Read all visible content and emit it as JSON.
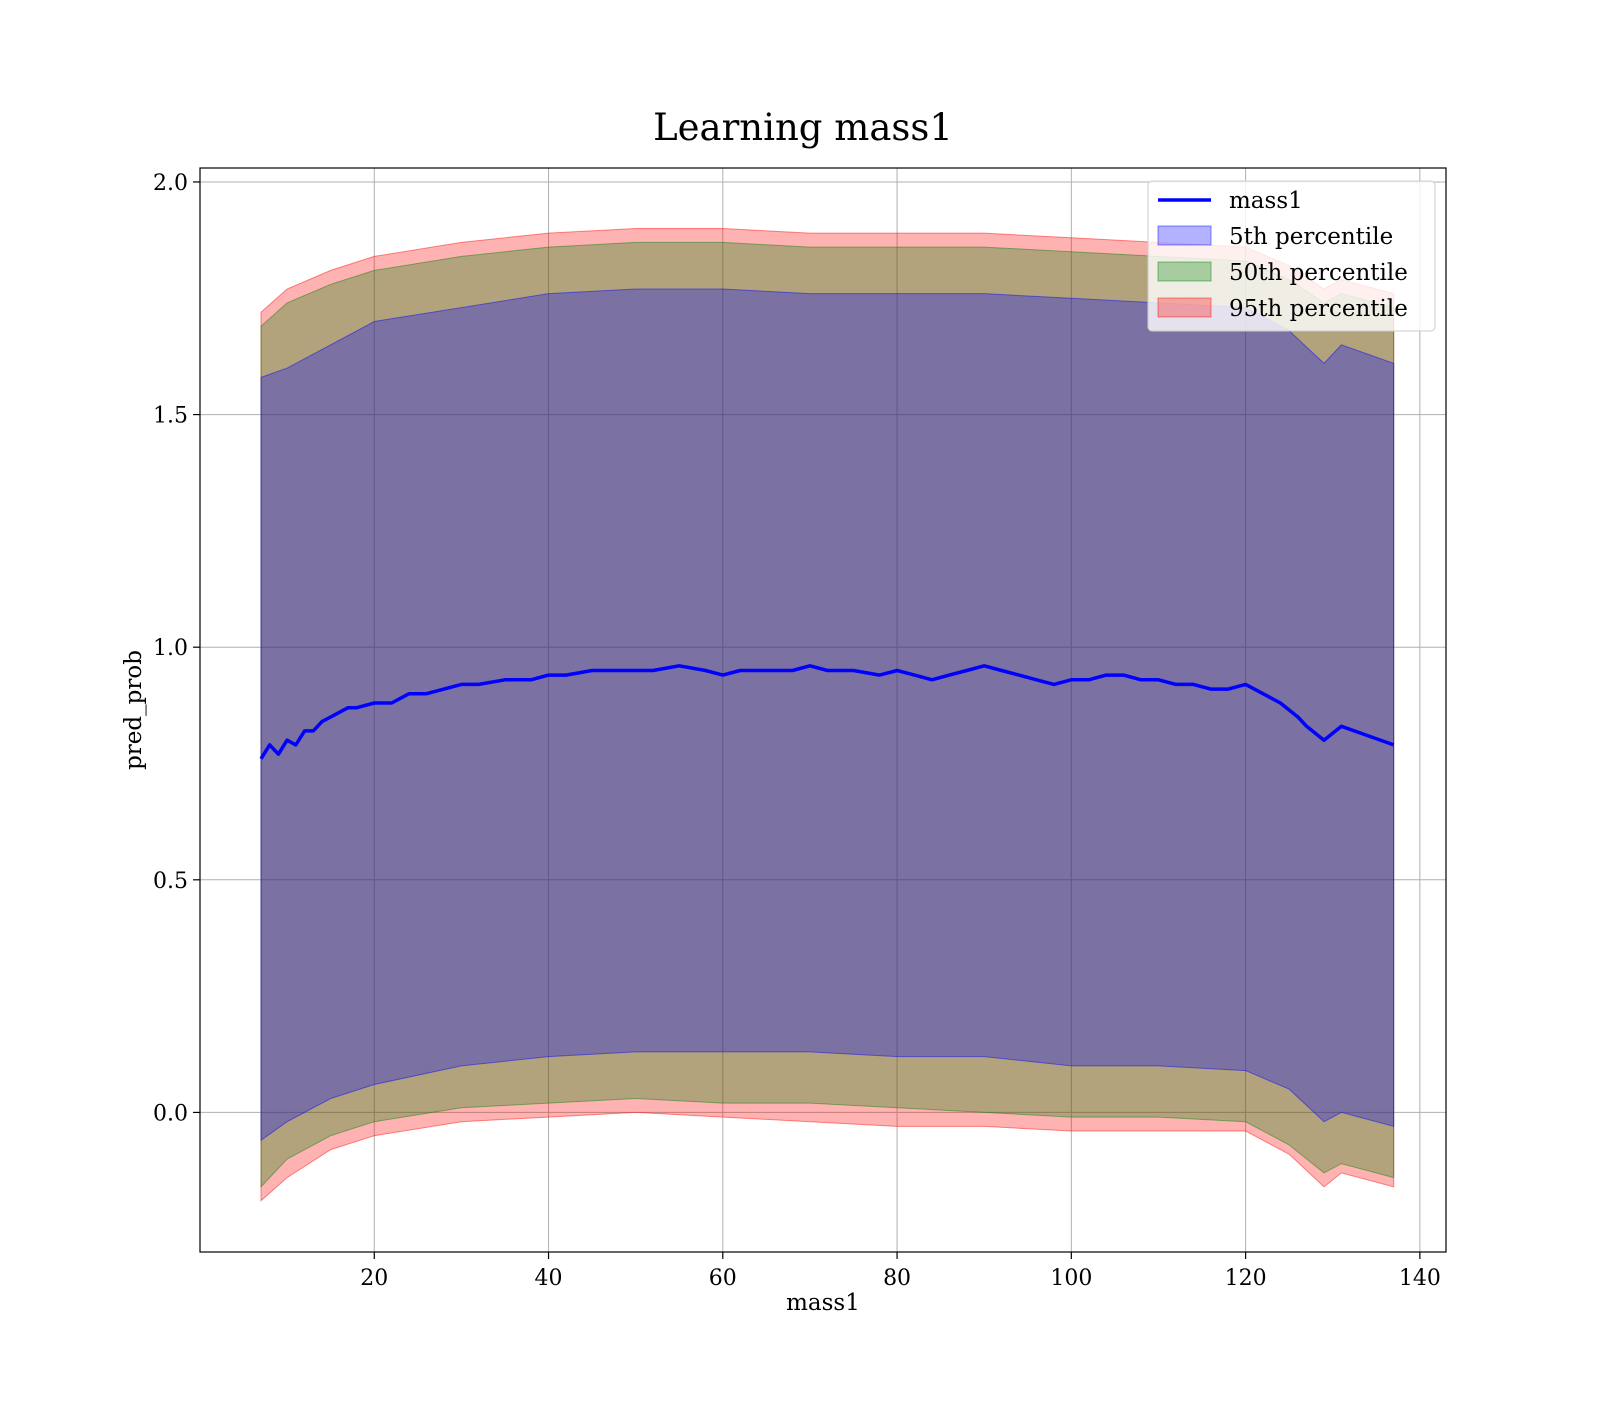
{
  "chart_data": {
    "type": "area",
    "title": "Learning mass1",
    "xlabel": "mass1",
    "ylabel": "pred_prob",
    "xlim": [
      0,
      143
    ],
    "ylim": [
      -0.3,
      2.03
    ],
    "x_ticks": [
      20,
      40,
      60,
      80,
      100,
      120,
      140
    ],
    "y_ticks": [
      0.0,
      0.5,
      1.0,
      1.5,
      2.0
    ],
    "x_tick_labels": [
      "20",
      "40",
      "60",
      "80",
      "100",
      "120",
      "140"
    ],
    "y_tick_labels": [
      "0.0",
      "0.5",
      "1.0",
      "1.5",
      "2.0"
    ],
    "grid": true,
    "legend_position": "top-right",
    "line": {
      "name": "mass1",
      "color": "#0000ff",
      "x": [
        7,
        8,
        9,
        10,
        11,
        12,
        13,
        14,
        15,
        16,
        17,
        18,
        20,
        22,
        24,
        26,
        28,
        30,
        32,
        35,
        38,
        40,
        42,
        45,
        48,
        50,
        52,
        55,
        58,
        60,
        62,
        65,
        68,
        70,
        72,
        75,
        78,
        80,
        82,
        84,
        86,
        88,
        90,
        92,
        94,
        96,
        98,
        100,
        102,
        104,
        106,
        108,
        110,
        112,
        114,
        116,
        118,
        120,
        122,
        124,
        126,
        127,
        129,
        131,
        134,
        137
      ],
      "y": [
        0.76,
        0.79,
        0.77,
        0.8,
        0.79,
        0.82,
        0.82,
        0.84,
        0.85,
        0.86,
        0.87,
        0.87,
        0.88,
        0.88,
        0.9,
        0.9,
        0.91,
        0.92,
        0.92,
        0.93,
        0.93,
        0.94,
        0.94,
        0.95,
        0.95,
        0.95,
        0.95,
        0.96,
        0.95,
        0.94,
        0.95,
        0.95,
        0.95,
        0.96,
        0.95,
        0.95,
        0.94,
        0.95,
        0.94,
        0.93,
        0.94,
        0.95,
        0.96,
        0.95,
        0.94,
        0.93,
        0.92,
        0.93,
        0.93,
        0.94,
        0.94,
        0.93,
        0.93,
        0.92,
        0.92,
        0.91,
        0.91,
        0.92,
        0.9,
        0.88,
        0.85,
        0.83,
        0.8,
        0.83,
        0.81,
        0.79
      ]
    },
    "series": [
      {
        "name": "5th percentile",
        "color": "#0000ff",
        "x": [
          7,
          10,
          15,
          20,
          30,
          40,
          50,
          60,
          70,
          80,
          90,
          100,
          110,
          120,
          125,
          129,
          131,
          137
        ],
        "lower": [
          -0.06,
          -0.02,
          0.03,
          0.06,
          0.1,
          0.12,
          0.13,
          0.13,
          0.13,
          0.12,
          0.12,
          0.1,
          0.1,
          0.09,
          0.05,
          -0.02,
          0.0,
          -0.03
        ],
        "upper": [
          1.58,
          1.6,
          1.65,
          1.7,
          1.73,
          1.76,
          1.77,
          1.77,
          1.76,
          1.76,
          1.76,
          1.75,
          1.74,
          1.73,
          1.68,
          1.61,
          1.65,
          1.61
        ]
      },
      {
        "name": "50th percentile",
        "color": "#008000",
        "x": [
          7,
          10,
          15,
          20,
          30,
          40,
          50,
          60,
          70,
          80,
          90,
          100,
          110,
          120,
          125,
          129,
          131,
          137
        ],
        "lower": [
          -0.16,
          -0.1,
          -0.05,
          -0.02,
          0.01,
          0.02,
          0.03,
          0.02,
          0.02,
          0.01,
          0.0,
          -0.01,
          -0.01,
          -0.02,
          -0.07,
          -0.13,
          -0.11,
          -0.14
        ],
        "upper": [
          1.69,
          1.74,
          1.78,
          1.81,
          1.84,
          1.86,
          1.87,
          1.87,
          1.86,
          1.86,
          1.86,
          1.85,
          1.84,
          1.83,
          1.79,
          1.74,
          1.76,
          1.73
        ]
      },
      {
        "name": "95th percentile",
        "color": "#ff0000",
        "x": [
          7,
          10,
          15,
          20,
          30,
          40,
          50,
          60,
          70,
          80,
          90,
          100,
          110,
          120,
          125,
          129,
          131,
          137
        ],
        "lower": [
          -0.19,
          -0.14,
          -0.08,
          -0.05,
          -0.02,
          -0.01,
          0.0,
          -0.01,
          -0.02,
          -0.03,
          -0.03,
          -0.04,
          -0.04,
          -0.04,
          -0.09,
          -0.16,
          -0.13,
          -0.16
        ],
        "upper": [
          1.72,
          1.77,
          1.81,
          1.84,
          1.87,
          1.89,
          1.9,
          1.9,
          1.89,
          1.89,
          1.89,
          1.88,
          1.87,
          1.86,
          1.82,
          1.77,
          1.79,
          1.76
        ]
      }
    ]
  }
}
